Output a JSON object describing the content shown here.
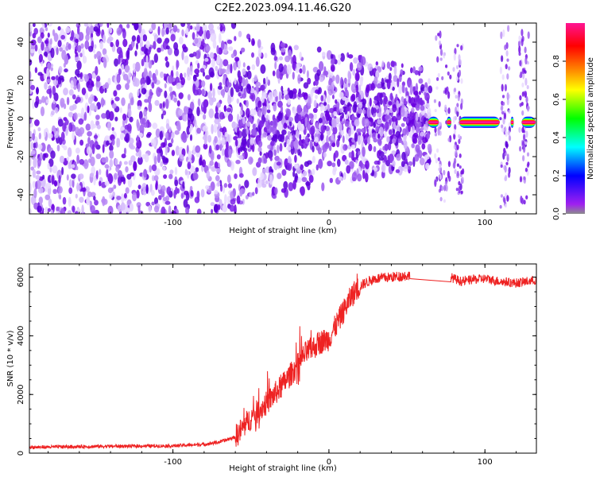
{
  "title": "C2E2.2023.094.11.46.G20",
  "chart_data": [
    {
      "type": "heatmap",
      "xlabel": "Height of straight line (km)",
      "ylabel": "Frequency (Hz)",
      "xlim": [
        -192,
        133
      ],
      "ylim": [
        -50,
        50
      ],
      "x_ticks": [
        -100,
        0,
        100
      ],
      "y_ticks": [
        -40,
        -20,
        0,
        20,
        40
      ],
      "colorbar": {
        "label": "Normalized spectral amplitude",
        "range": [
          0,
          1
        ],
        "ticks": [
          "0.0",
          "0.2",
          "0.4",
          "0.6",
          "0.8"
        ],
        "colormap": [
          "#8c8c8c",
          "#a020f0",
          "#0000ff",
          "#00ffff",
          "#00ff00",
          "#ffff00",
          "#ff8c00",
          "#ff0000",
          "#ff1493"
        ]
      },
      "regions": [
        {
          "x": [
            -192,
            -60
          ],
          "freq_spread": [
            -50,
            50
          ],
          "amplitude": 0.12,
          "note": "diffuse"
        },
        {
          "x": [
            -60,
            65
          ],
          "freq_spread": [
            -45,
            45
          ],
          "amplitude": 0.15,
          "note": "concentrating toward 0 Hz"
        },
        {
          "x": [
            65,
            133
          ],
          "freq": -2,
          "amplitude": 1.0,
          "note": "narrow carrier line with gaps"
        }
      ]
    },
    {
      "type": "line",
      "xlabel": "Height of straight line (km)",
      "ylabel": "SNR (10 * v/v)",
      "xlim": [
        -192,
        133
      ],
      "ylim": [
        0,
        6450
      ],
      "x_ticks": [
        -100,
        0,
        100
      ],
      "y_ticks": [
        0,
        2000,
        4000,
        6000
      ],
      "series": [
        {
          "color": "#ee2222",
          "x": [
            -192,
            -150,
            -100,
            -80,
            -70,
            -60,
            -50,
            -40,
            -30,
            -20,
            -15,
            -10,
            -5,
            0,
            5,
            10,
            15,
            20,
            25,
            30,
            40,
            50,
            78,
            85,
            90,
            100,
            110,
            120,
            133
          ],
          "y": [
            200,
            230,
            250,
            300,
            380,
            550,
            1200,
            1700,
            2300,
            3000,
            3400,
            3600,
            3800,
            3900,
            4400,
            4900,
            5400,
            5700,
            5850,
            5950,
            6000,
            6050,
            6000,
            5850,
            5900,
            5950,
            5850,
            5800,
            5900
          ]
        }
      ]
    }
  ]
}
